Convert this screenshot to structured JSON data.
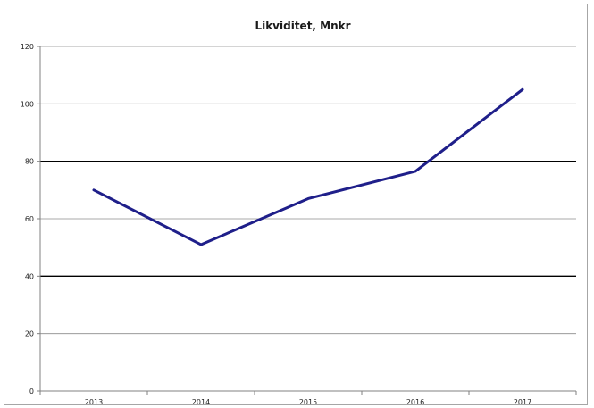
{
  "chart_data": {
    "type": "line",
    "title": "Likviditet, Mnkr",
    "xlabel": "",
    "ylabel": "",
    "categories": [
      "2013",
      "2014",
      "2015",
      "2016",
      "2017"
    ],
    "series": [
      {
        "values": [
          70,
          51,
          67,
          76.5,
          105
        ],
        "color": "#1f1f8a"
      }
    ],
    "ylim": [
      0,
      120
    ],
    "yticks": [
      "0",
      "20",
      "40",
      "60",
      "80",
      "100",
      "120"
    ],
    "grid": true,
    "legend": "none"
  }
}
